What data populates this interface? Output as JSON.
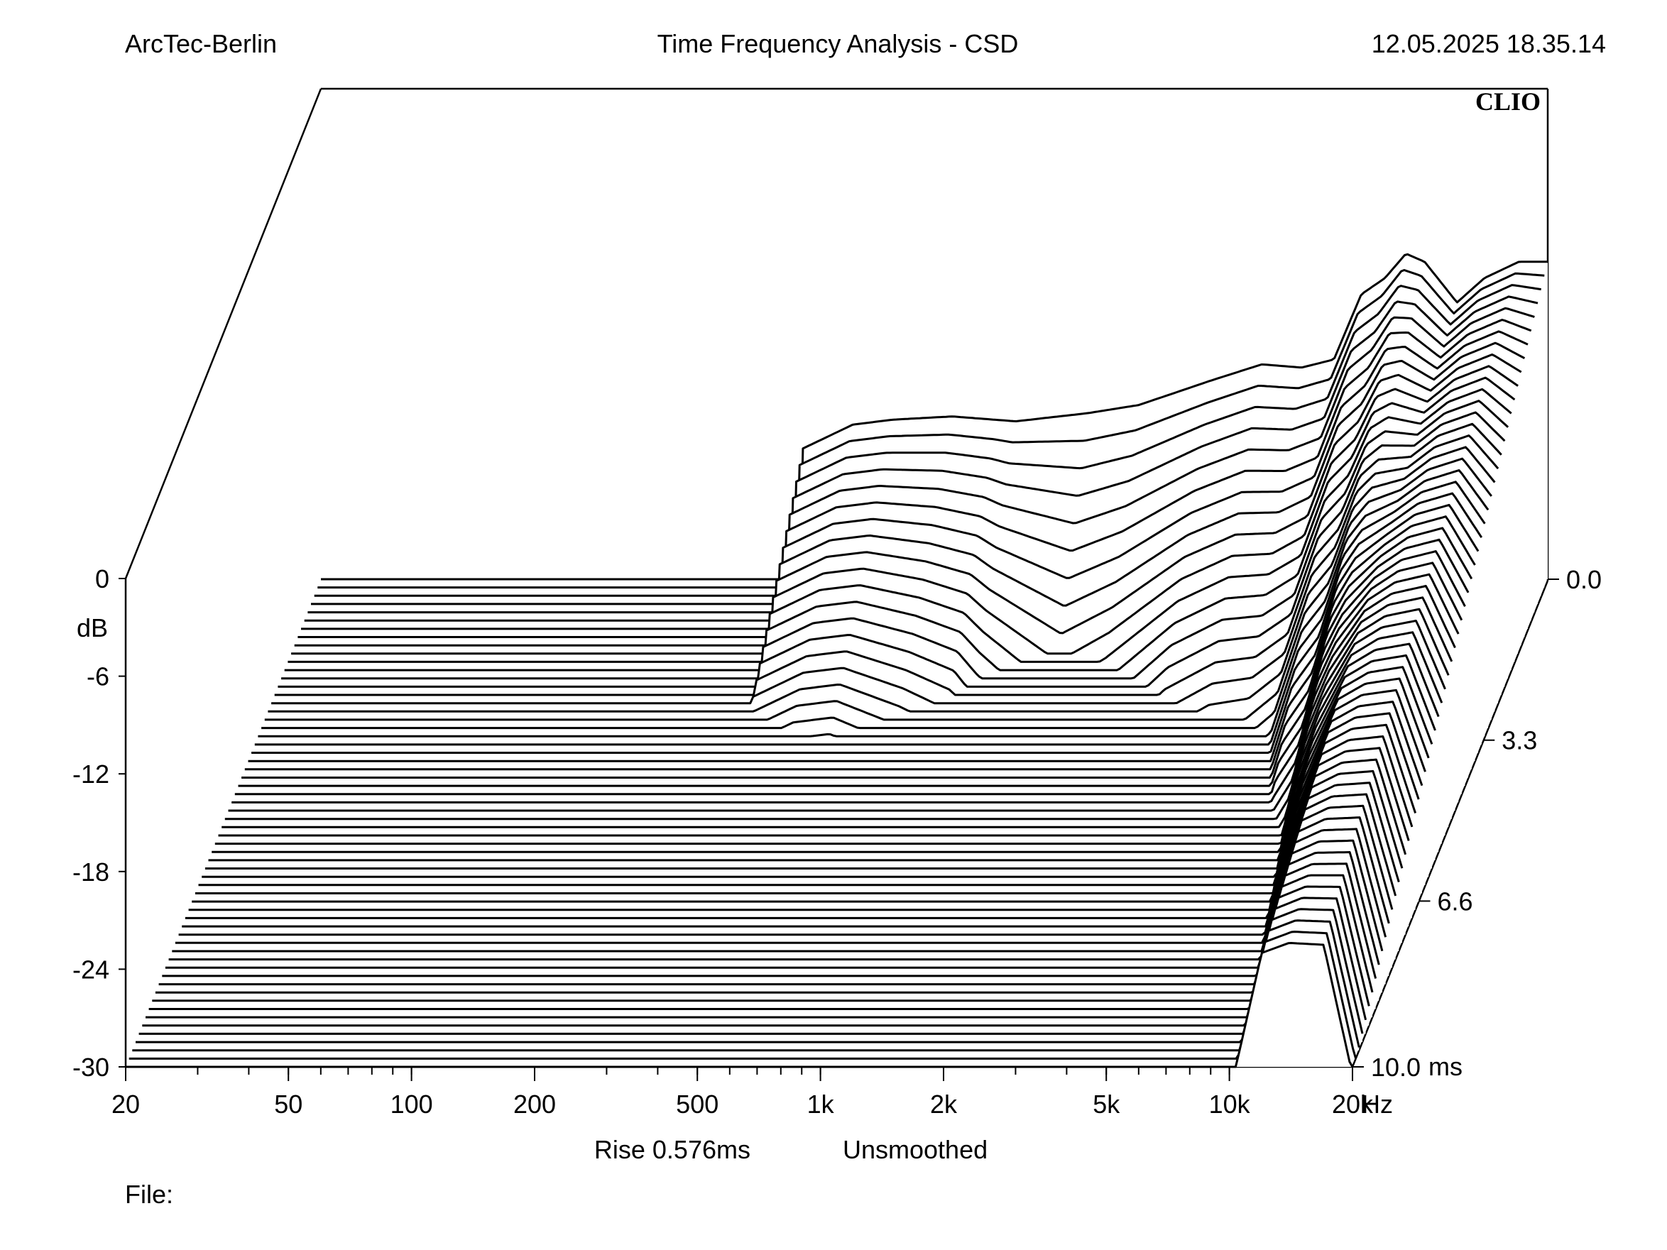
{
  "header": {
    "company": "ArcTec-Berlin",
    "title": "Time Frequency Analysis - CSD",
    "datetime": "12.05.2025 18.35.14",
    "brand": "CLIO"
  },
  "footer": {
    "rise": "Rise 0.576ms",
    "smoothing": "Unsmoothed",
    "file_label": "File:"
  },
  "chart_data": {
    "type": "waterfall",
    "title": "Time Frequency Analysis - CSD",
    "x_axis": {
      "scale": "log",
      "range": [
        20,
        20000
      ],
      "unit": "Hz",
      "tick_values": [
        20,
        50,
        100,
        200,
        500,
        1000,
        2000,
        5000,
        10000,
        20000
      ],
      "tick_labels": [
        "20",
        "50",
        "100",
        "200",
        "500",
        "1k",
        "2k",
        "5k",
        "10k",
        "20k"
      ]
    },
    "y_axis": {
      "unit": "dB",
      "range": [
        -30,
        0
      ],
      "tick_values": [
        0,
        -6,
        -12,
        -18,
        -24,
        -30
      ],
      "tick_labels": [
        "0",
        "-6",
        "-12",
        "-18",
        "-24",
        "-30"
      ]
    },
    "z_axis": {
      "unit": "ms",
      "range": [
        0,
        10
      ],
      "tick_values": [
        0,
        3.3,
        6.6,
        10
      ],
      "tick_labels": [
        "0.0",
        "3.3",
        "6.6",
        "10.0"
      ]
    },
    "slice_count": 60,
    "slice_start_hz": 300,
    "onset": [
      [
        300,
        -22
      ],
      [
        400,
        -20.5
      ],
      [
        500,
        -20.2
      ],
      [
        700,
        -20
      ],
      [
        1000,
        -20.3
      ],
      [
        1500,
        -19.8
      ],
      [
        2000,
        -19.3
      ],
      [
        3000,
        -17.8
      ],
      [
        4000,
        -16.8
      ],
      [
        5000,
        -17
      ],
      [
        6000,
        -16.5
      ],
      [
        7000,
        -12.5
      ],
      [
        8000,
        -11.5
      ],
      [
        9000,
        -10
      ],
      [
        10000,
        -10.5
      ],
      [
        12000,
        -13
      ],
      [
        14000,
        -11.5
      ],
      [
        17000,
        -10.5
      ],
      [
        20000,
        -10.5
      ]
    ],
    "decay": [
      {
        "f": 500,
        "db_per_ms": 3.0
      },
      {
        "f": 900,
        "db_per_ms": 4.0
      },
      {
        "f": 1500,
        "db_per_ms": 7.0
      },
      {
        "f": 3000,
        "db_per_ms": 5.0
      },
      {
        "f": 5000,
        "db_per_ms": 4.5
      },
      {
        "f": 8000,
        "db_per_ms": 3.5
      },
      {
        "f": 12000,
        "db_per_ms": 1.0
      },
      {
        "f": 17000,
        "db_per_ms": 1.2
      },
      {
        "f": 20000,
        "db_per_ms": 2.0
      }
    ]
  }
}
